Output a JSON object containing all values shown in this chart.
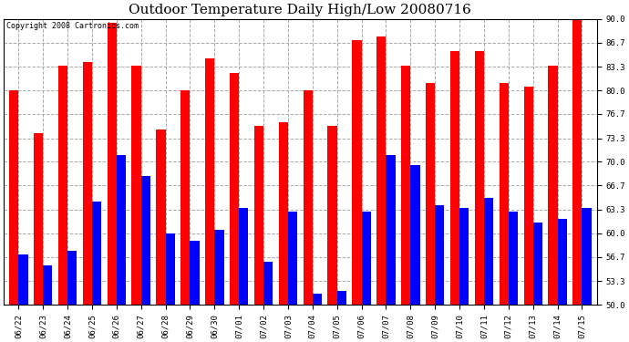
{
  "title": "Outdoor Temperature Daily High/Low 20080716",
  "copyright": "Copyright 2008 Cartronics.com",
  "dates": [
    "06/22",
    "06/23",
    "06/24",
    "06/25",
    "06/26",
    "06/27",
    "06/28",
    "06/29",
    "06/30",
    "07/01",
    "07/02",
    "07/03",
    "07/04",
    "07/05",
    "07/06",
    "07/07",
    "07/08",
    "07/09",
    "07/10",
    "07/11",
    "07/12",
    "07/13",
    "07/14",
    "07/15"
  ],
  "highs": [
    80.0,
    74.0,
    83.5,
    84.0,
    89.5,
    83.5,
    74.5,
    80.0,
    84.5,
    82.5,
    75.0,
    75.5,
    80.0,
    75.0,
    87.0,
    87.5,
    83.5,
    81.0,
    85.5,
    85.5,
    81.0,
    80.5,
    83.5,
    90.0
  ],
  "lows": [
    57.0,
    55.5,
    57.5,
    64.5,
    71.0,
    68.0,
    60.0,
    59.0,
    60.5,
    63.5,
    56.0,
    63.0,
    51.5,
    52.0,
    63.0,
    71.0,
    69.5,
    64.0,
    63.5,
    65.0,
    63.0,
    61.5,
    62.0,
    63.5
  ],
  "high_color": "#FF0000",
  "low_color": "#0000FF",
  "bg_color": "#FFFFFF",
  "grid_color": "#AAAAAA",
  "ylim": [
    50.0,
    90.0
  ],
  "yticks": [
    50.0,
    53.3,
    56.7,
    60.0,
    63.3,
    66.7,
    70.0,
    73.3,
    76.7,
    80.0,
    83.3,
    86.7,
    90.0
  ],
  "title_fontsize": 11,
  "copyright_fontsize": 6,
  "tick_fontsize": 6.5,
  "bar_width": 0.38
}
